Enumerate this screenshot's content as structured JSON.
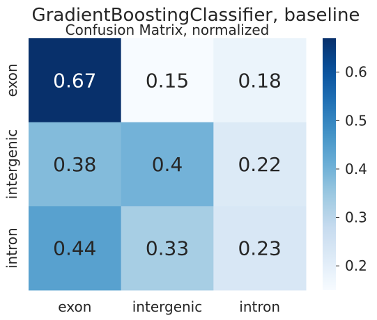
{
  "chart_data": {
    "type": "heatmap",
    "title": "GradientBoostingClassifier, baseline",
    "subtitle": "Confusion Matrix, normalized",
    "xlabel": "",
    "ylabel": "",
    "x_categories": [
      "exon",
      "intergenic",
      "intron"
    ],
    "y_categories": [
      "exon",
      "intergenic",
      "intron"
    ],
    "values": [
      [
        0.67,
        0.15,
        0.18
      ],
      [
        0.38,
        0.4,
        0.22
      ],
      [
        0.44,
        0.33,
        0.23
      ]
    ],
    "annotations": [
      [
        "0.67",
        "0.15",
        "0.18"
      ],
      [
        "0.38",
        "0.4",
        "0.22"
      ],
      [
        "0.44",
        "0.33",
        "0.23"
      ]
    ],
    "colormap": "Blues",
    "colorbar": {
      "range": [
        0.15,
        0.67
      ],
      "ticks": [
        0.2,
        0.3,
        0.4,
        0.5,
        0.6
      ],
      "tick_labels": [
        "0.2",
        "0.3",
        "0.4",
        "0.5",
        "0.6"
      ]
    },
    "colors": {
      "min": "#f7fbff",
      "max": "#08306b",
      "dark_text": "#262626",
      "light_text": "#ffffff"
    }
  }
}
